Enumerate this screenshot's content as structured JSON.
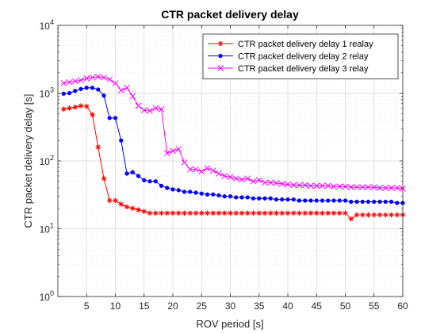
{
  "chart_data": {
    "type": "line",
    "title": "CTR packet delivery delay",
    "xlabel": "ROV period [s]",
    "ylabel": "CTR packet delivery delay [s]",
    "xlim": [
      0,
      60
    ],
    "ylim": [
      1,
      10000
    ],
    "yscale": "log",
    "grid": true,
    "legend_position": "top-right",
    "x_ticks": [
      5,
      10,
      15,
      20,
      25,
      30,
      35,
      40,
      45,
      50,
      55,
      60
    ],
    "x_tick_labels": [
      "5",
      "10",
      "15",
      "20",
      "25",
      "30",
      "35",
      "40",
      "45",
      "50",
      "55",
      "60"
    ],
    "y_ticks": [
      1,
      10,
      100,
      1000,
      10000
    ],
    "y_tick_labels": [
      {
        "base": "10",
        "exp": "0"
      },
      {
        "base": "10",
        "exp": "1"
      },
      {
        "base": "10",
        "exp": "2"
      },
      {
        "base": "10",
        "exp": "3"
      },
      {
        "base": "10",
        "exp": "4"
      }
    ],
    "series": [
      {
        "name": "CTR packet delivery delay 1 realay",
        "color": "#ff0000",
        "marker": "asterisk",
        "x": [
          1,
          2,
          3,
          4,
          5,
          6,
          7,
          8,
          9,
          10,
          11,
          12,
          13,
          14,
          15,
          16,
          17,
          18,
          19,
          20,
          21,
          22,
          23,
          24,
          25,
          26,
          27,
          28,
          29,
          30,
          31,
          32,
          33,
          34,
          35,
          36,
          37,
          38,
          39,
          40,
          41,
          42,
          43,
          44,
          45,
          46,
          47,
          48,
          49,
          50,
          51,
          52,
          53,
          54,
          55,
          56,
          57,
          58,
          59,
          60
        ],
        "values": [
          580,
          600,
          620,
          650,
          640,
          480,
          160,
          55,
          26,
          26,
          23,
          21,
          20,
          19,
          18,
          17,
          17,
          17,
          17,
          17,
          17,
          17,
          17,
          17,
          17,
          17,
          17,
          17,
          17,
          17,
          17,
          17,
          17,
          17,
          17,
          17,
          17,
          17,
          17,
          17,
          17,
          17,
          17,
          17,
          17,
          17,
          17,
          17,
          17,
          17,
          14,
          16,
          16,
          16,
          16,
          16,
          16,
          16,
          16,
          16
        ]
      },
      {
        "name": "CTR packet delivery delay 2 relay",
        "color": "#0000ff",
        "marker": "dot",
        "x": [
          1,
          2,
          3,
          4,
          5,
          6,
          7,
          8,
          9,
          10,
          11,
          12,
          13,
          14,
          15,
          16,
          17,
          18,
          19,
          20,
          21,
          22,
          23,
          24,
          25,
          26,
          27,
          28,
          29,
          30,
          31,
          32,
          33,
          34,
          35,
          36,
          37,
          38,
          39,
          40,
          41,
          42,
          43,
          44,
          45,
          46,
          47,
          48,
          49,
          50,
          51,
          52,
          53,
          54,
          55,
          56,
          57,
          58,
          59,
          60
        ],
        "values": [
          980,
          1000,
          1080,
          1150,
          1200,
          1200,
          1130,
          920,
          430,
          430,
          200,
          65,
          68,
          60,
          52,
          50,
          50,
          43,
          40,
          38,
          37,
          35,
          35,
          34,
          33,
          32,
          32,
          31,
          30,
          30,
          29,
          29,
          29,
          28,
          28,
          28,
          28,
          27,
          27,
          27,
          27,
          26,
          26,
          26,
          26,
          26,
          26,
          26,
          26,
          26,
          25,
          25,
          25,
          25,
          25,
          25,
          25,
          25,
          24,
          24
        ]
      },
      {
        "name": "CTR packet delivery delay 3 relay",
        "color": "#ff00ff",
        "marker": "x",
        "x": [
          1,
          2,
          3,
          4,
          5,
          6,
          7,
          8,
          9,
          10,
          11,
          12,
          13,
          14,
          15,
          16,
          17,
          18,
          19,
          20,
          21,
          22,
          23,
          24,
          25,
          26,
          27,
          28,
          29,
          30,
          31,
          32,
          33,
          34,
          35,
          36,
          37,
          38,
          39,
          40,
          41,
          42,
          43,
          44,
          45,
          46,
          47,
          48,
          49,
          50,
          51,
          52,
          53,
          54,
          55,
          56,
          57,
          58,
          59,
          60
        ],
        "values": [
          1400,
          1450,
          1500,
          1550,
          1650,
          1700,
          1750,
          1700,
          1600,
          1400,
          1100,
          1200,
          900,
          650,
          560,
          550,
          600,
          580,
          130,
          140,
          150,
          95,
          75,
          75,
          70,
          78,
          72,
          65,
          60,
          58,
          55,
          53,
          55,
          50,
          52,
          48,
          48,
          47,
          46,
          45,
          44,
          44,
          44,
          43,
          43,
          43,
          43,
          42,
          42,
          42,
          41,
          41,
          41,
          41,
          41,
          40,
          40,
          40,
          40,
          39
        ]
      }
    ]
  }
}
